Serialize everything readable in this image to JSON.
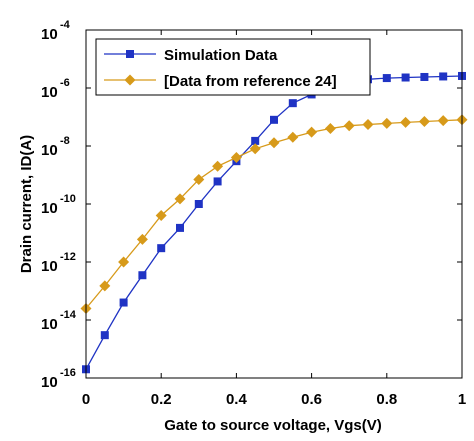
{
  "chart_data": {
    "type": "line",
    "xlabel": "Gate to source voltage, Vgs(V)",
    "ylabel": "Drain current, ID(A)",
    "xlim": [
      0,
      1
    ],
    "ylim": [
      1e-16,
      0.0001
    ],
    "yscale": "log",
    "grid": false,
    "legend_position": "top-left",
    "x_ticks": [
      "0",
      "0.2",
      "0.4",
      "0.6",
      "0.8",
      "1"
    ],
    "y_ticks": [
      {
        "base": "10",
        "exp": "-16"
      },
      {
        "base": "10",
        "exp": "-14"
      },
      {
        "base": "10",
        "exp": "-12"
      },
      {
        "base": "10",
        "exp": "-10"
      },
      {
        "base": "10",
        "exp": "-8"
      },
      {
        "base": "10",
        "exp": "-6"
      },
      {
        "base": "10",
        "exp": "-4"
      }
    ],
    "series": [
      {
        "name": "Simulation Data",
        "color": "#1f33c4",
        "marker": "square",
        "x": [
          0,
          0.05,
          0.1,
          0.15,
          0.2,
          0.25,
          0.3,
          0.35,
          0.4,
          0.45,
          0.5,
          0.55,
          0.6,
          0.65,
          0.7,
          0.75,
          0.8,
          0.85,
          0.9,
          0.95,
          1.0
        ],
        "y": [
          2e-16,
          3e-15,
          4e-14,
          3.5e-13,
          3e-12,
          1.5e-11,
          1e-10,
          6e-10,
          3e-09,
          1.5e-08,
          8e-08,
          3e-07,
          6e-07,
          1e-06,
          1.5e-06,
          2e-06,
          2.2e-06,
          2.3e-06,
          2.4e-06,
          2.5e-06,
          2.6e-06
        ]
      },
      {
        "name": "[Data from reference 24]",
        "color": "#d79a1a",
        "marker": "diamond",
        "x": [
          0,
          0.05,
          0.1,
          0.15,
          0.2,
          0.25,
          0.3,
          0.35,
          0.4,
          0.45,
          0.5,
          0.55,
          0.6,
          0.65,
          0.7,
          0.75,
          0.8,
          0.85,
          0.9,
          0.95,
          1.0
        ],
        "y": [
          2.5e-14,
          1.5e-13,
          1e-12,
          6e-12,
          4e-11,
          1.5e-10,
          7e-10,
          2e-09,
          4e-09,
          8e-09,
          1.3e-08,
          2e-08,
          3e-08,
          4e-08,
          5e-08,
          5.5e-08,
          6e-08,
          6.5e-08,
          7e-08,
          7.5e-08,
          8e-08
        ]
      }
    ]
  }
}
